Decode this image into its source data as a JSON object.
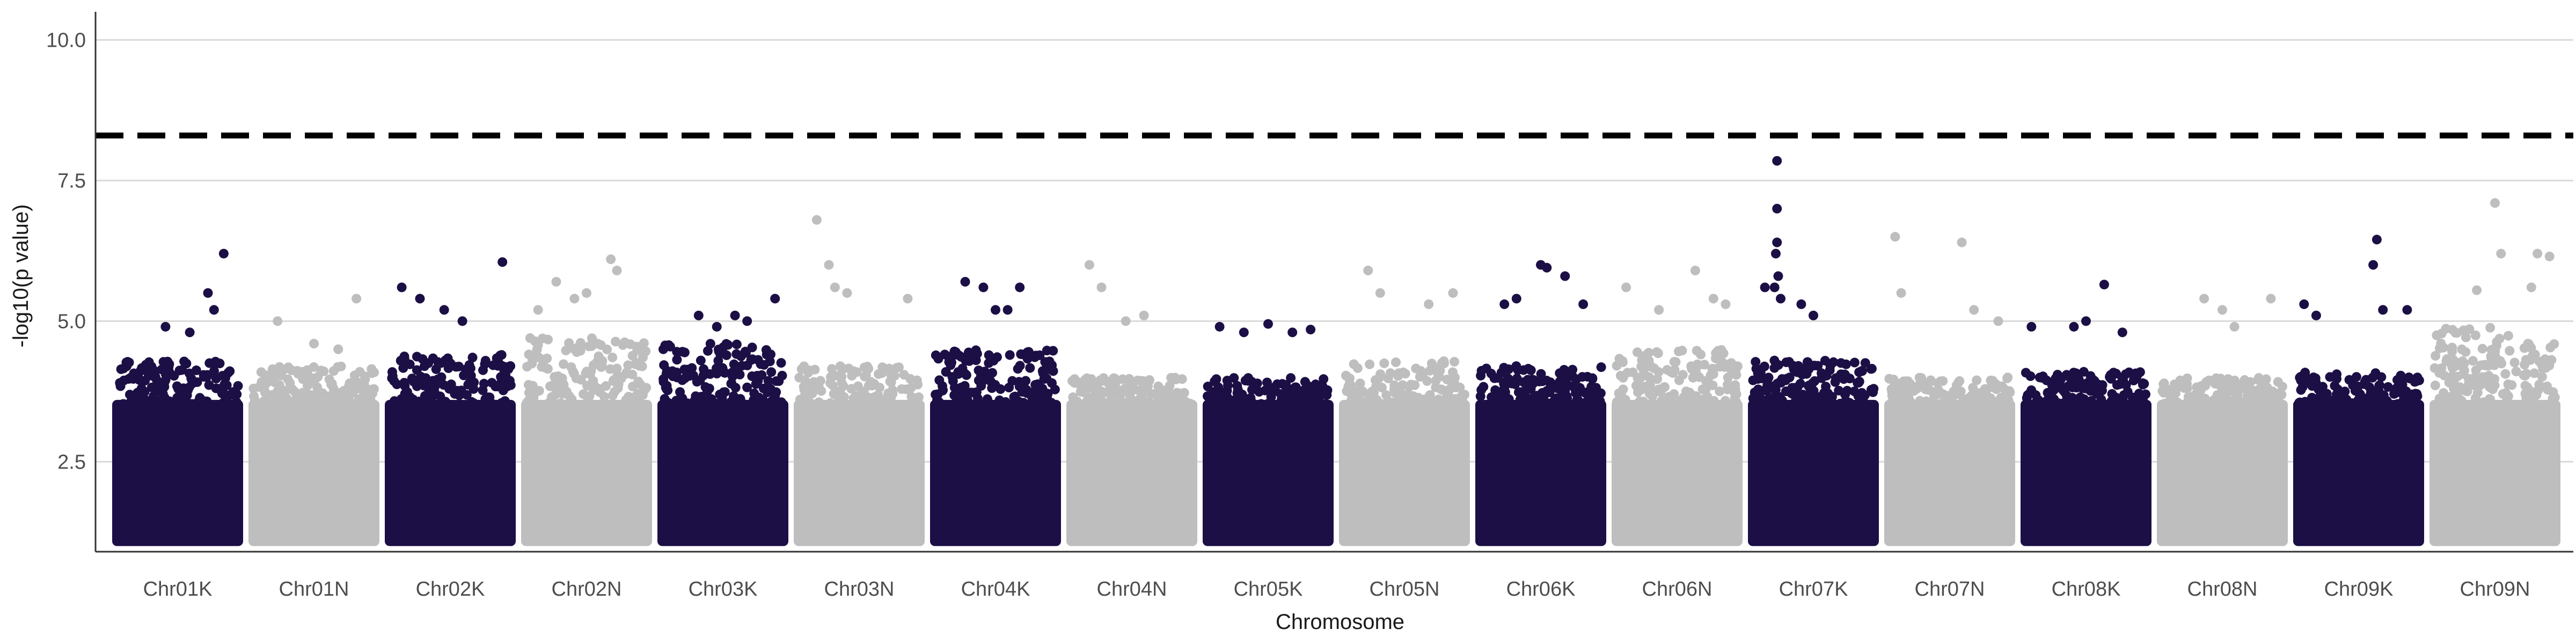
{
  "chart_data": {
    "type": "scatter",
    "subtype": "manhattan",
    "title": "",
    "xlabel": "Chromosome",
    "ylabel": "-log10(p value)",
    "ylim": [
      0.9,
      10.5
    ],
    "yticks": [
      2.5,
      5.0,
      7.5,
      10.0
    ],
    "yticks_labels": [
      "2.5",
      "5.0",
      "7.5",
      "10.0"
    ],
    "grid": "horizontal-major",
    "legend": "none",
    "threshold": 8.3,
    "threshold_style": "dashed",
    "colors": {
      "dark": "#1c0f45",
      "light": "#bebebe",
      "grid": "#d9d9d9",
      "threshold": "#000000"
    },
    "point_min_value": 1.0,
    "categories": [
      "Chr01K",
      "Chr01N",
      "Chr02K",
      "Chr02N",
      "Chr03K",
      "Chr03N",
      "Chr04K",
      "Chr04N",
      "Chr05K",
      "Chr05N",
      "Chr06K",
      "Chr06N",
      "Chr07K",
      "Chr07N",
      "Chr08K",
      "Chr08N",
      "Chr09K",
      "Chr09N"
    ],
    "category_color": [
      "dark",
      "light",
      "dark",
      "light",
      "dark",
      "light",
      "dark",
      "light",
      "dark",
      "light",
      "dark",
      "light",
      "dark",
      "light",
      "dark",
      "light",
      "dark",
      "light"
    ],
    "band_top": [
      4.3,
      4.2,
      4.4,
      4.7,
      4.6,
      4.2,
      4.5,
      4.0,
      4.0,
      4.3,
      4.2,
      4.5,
      4.3,
      4.0,
      4.1,
      4.0,
      4.1,
      4.9
    ],
    "top_hits": [
      [
        [
          0.88,
          6.2
        ],
        [
          0.75,
          5.5
        ],
        [
          0.4,
          4.9
        ],
        [
          0.6,
          4.8
        ],
        [
          0.8,
          5.2
        ]
      ],
      [
        [
          0.2,
          5.0
        ],
        [
          0.85,
          5.4
        ],
        [
          0.5,
          4.6
        ],
        [
          0.7,
          4.5
        ]
      ],
      [
        [
          0.1,
          5.6
        ],
        [
          0.25,
          5.4
        ],
        [
          0.45,
          5.2
        ],
        [
          0.93,
          6.05
        ],
        [
          0.6,
          5.0
        ]
      ],
      [
        [
          0.25,
          5.7
        ],
        [
          0.4,
          5.4
        ],
        [
          0.7,
          6.1
        ],
        [
          0.75,
          5.9
        ],
        [
          0.1,
          5.2
        ],
        [
          0.5,
          5.5
        ]
      ],
      [
        [
          0.6,
          5.1
        ],
        [
          0.7,
          5.0
        ],
        [
          0.93,
          5.4
        ],
        [
          0.3,
          5.1
        ],
        [
          0.45,
          4.9
        ]
      ],
      [
        [
          0.15,
          6.8
        ],
        [
          0.25,
          6.0
        ],
        [
          0.3,
          5.6
        ],
        [
          0.4,
          5.5
        ],
        [
          0.9,
          5.4
        ]
      ],
      [
        [
          0.25,
          5.7
        ],
        [
          0.4,
          5.6
        ],
        [
          0.7,
          5.6
        ],
        [
          0.5,
          5.2
        ],
        [
          0.6,
          5.2
        ]
      ],
      [
        [
          0.15,
          6.0
        ],
        [
          0.25,
          5.6
        ],
        [
          0.6,
          5.1
        ],
        [
          0.45,
          5.0
        ]
      ],
      [
        [
          0.1,
          4.9
        ],
        [
          0.5,
          4.95
        ],
        [
          0.85,
          4.85
        ],
        [
          0.3,
          4.8
        ],
        [
          0.7,
          4.8
        ]
      ],
      [
        [
          0.2,
          5.9
        ],
        [
          0.3,
          5.5
        ],
        [
          0.7,
          5.3
        ],
        [
          0.9,
          5.5
        ]
      ],
      [
        [
          0.5,
          6.0
        ],
        [
          0.55,
          5.95
        ],
        [
          0.7,
          5.8
        ],
        [
          0.85,
          5.3
        ],
        [
          0.2,
          5.3
        ],
        [
          0.3,
          5.4
        ]
      ],
      [
        [
          0.08,
          5.6
        ],
        [
          0.35,
          5.2
        ],
        [
          0.65,
          5.9
        ],
        [
          0.8,
          5.4
        ],
        [
          0.9,
          5.3
        ]
      ],
      [
        [
          0.2,
          7.85
        ],
        [
          0.2,
          7.0
        ],
        [
          0.2,
          6.4
        ],
        [
          0.19,
          6.2
        ],
        [
          0.21,
          5.8
        ],
        [
          0.18,
          5.6
        ],
        [
          0.23,
          5.4
        ],
        [
          0.1,
          5.6
        ],
        [
          0.4,
          5.3
        ],
        [
          0.5,
          5.1
        ]
      ],
      [
        [
          0.05,
          6.5
        ],
        [
          0.6,
          6.4
        ],
        [
          0.1,
          5.5
        ],
        [
          0.7,
          5.2
        ],
        [
          0.9,
          5.0
        ]
      ],
      [
        [
          0.05,
          4.9
        ],
        [
          0.4,
          4.9
        ],
        [
          0.5,
          5.0
        ],
        [
          0.65,
          5.65
        ],
        [
          0.8,
          4.8
        ]
      ],
      [
        [
          0.35,
          5.4
        ],
        [
          0.5,
          5.2
        ],
        [
          0.9,
          5.4
        ],
        [
          0.6,
          4.9
        ]
      ],
      [
        [
          0.05,
          5.3
        ],
        [
          0.15,
          5.1
        ],
        [
          0.65,
          6.45
        ],
        [
          0.62,
          6.0
        ],
        [
          0.7,
          5.2
        ],
        [
          0.9,
          5.2
        ]
      ],
      [
        [
          0.35,
          5.55
        ],
        [
          0.5,
          7.1
        ],
        [
          0.55,
          6.2
        ],
        [
          0.85,
          6.2
        ],
        [
          0.95,
          6.15
        ],
        [
          0.8,
          5.6
        ]
      ]
    ]
  }
}
